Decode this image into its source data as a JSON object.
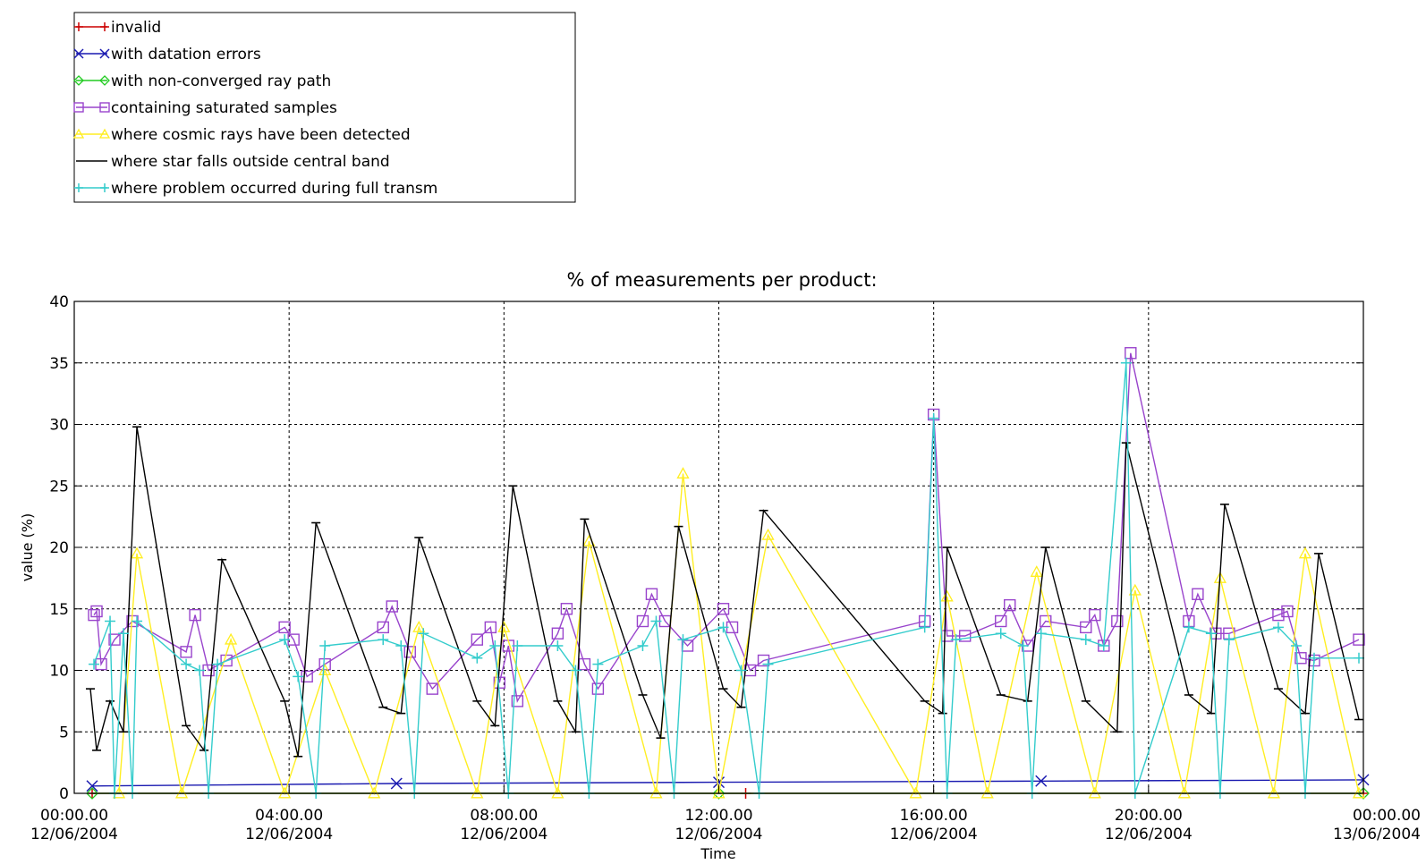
{
  "chart_data": {
    "type": "line",
    "title": "% of measurements per product:",
    "xlabel": "Time",
    "ylabel": "value (%)",
    "ylim": [
      0,
      40
    ],
    "xlim": [
      "2004-06-12 00:00",
      "2004-06-13 00:00"
    ],
    "yticks": [
      0,
      5,
      10,
      15,
      20,
      25,
      30,
      35,
      40
    ],
    "xticks": [
      {
        "value": "2004-06-12 00:00",
        "line1": "00:00.00",
        "line2": "12/06/2004"
      },
      {
        "value": "2004-06-12 04:00",
        "line1": "04:00.00",
        "line2": "12/06/2004"
      },
      {
        "value": "2004-06-12 08:00",
        "line1": "08:00.00",
        "line2": "12/06/2004"
      },
      {
        "value": "2004-06-12 12:00",
        "line1": "12:00.00",
        "line2": "12/06/2004"
      },
      {
        "value": "2004-06-12 16:00",
        "line1": "16:00.00",
        "line2": "12/06/2004"
      },
      {
        "value": "2004-06-12 20:00",
        "line1": "20:00.00",
        "line2": "12/06/2004"
      },
      {
        "value": "2004-06-13 00:00",
        "line1": "00:00.00",
        "line2": "13/06/2004"
      }
    ],
    "grid": true,
    "legend_position": "top-left, above plot",
    "series": [
      {
        "name": "invalid",
        "color": "#cc0000",
        "marker": "plus",
        "x": [
          "2004-06-12 00:20",
          "2004-06-12 12:30",
          "2004-06-13 00:00"
        ],
        "y": [
          0,
          0,
          0
        ]
      },
      {
        "name": "with datation errors",
        "color": "#1a1ab0",
        "marker": "x",
        "x": [
          "2004-06-12 00:20",
          "2004-06-12 06:00",
          "2004-06-12 12:00",
          "2004-06-12 18:00",
          "2004-06-13 00:00"
        ],
        "y": [
          0.6,
          0.8,
          0.9,
          1.0,
          1.1
        ]
      },
      {
        "name": "with non-converged ray path",
        "color": "#22cc22",
        "marker": "diamond",
        "x": [
          "2004-06-12 00:20",
          "2004-06-12 12:00",
          "2004-06-13 00:00"
        ],
        "y": [
          0,
          0,
          0
        ]
      },
      {
        "name": "containing saturated samples",
        "color": "#9944cc",
        "marker": "square",
        "x": [
          "2004-06-12 00:22",
          "2004-06-12 00:25",
          "2004-06-12 00:30",
          "2004-06-12 00:45",
          "2004-06-12 01:05",
          "2004-06-12 02:05",
          "2004-06-12 02:15",
          "2004-06-12 02:30",
          "2004-06-12 02:50",
          "2004-06-12 03:55",
          "2004-06-12 04:05",
          "2004-06-12 04:20",
          "2004-06-12 04:40",
          "2004-06-12 05:45",
          "2004-06-12 05:55",
          "2004-06-12 06:15",
          "2004-06-12 06:40",
          "2004-06-12 07:30",
          "2004-06-12 07:45",
          "2004-06-12 07:55",
          "2004-06-12 08:05",
          "2004-06-12 08:15",
          "2004-06-12 09:00",
          "2004-06-12 09:10",
          "2004-06-12 09:30",
          "2004-06-12 09:45",
          "2004-06-12 10:35",
          "2004-06-12 10:45",
          "2004-06-12 11:00",
          "2004-06-12 11:25",
          "2004-06-12 12:05",
          "2004-06-12 12:15",
          "2004-06-12 12:35",
          "2004-06-12 12:50",
          "2004-06-12 15:50",
          "2004-06-12 16:00",
          "2004-06-12 16:15",
          "2004-06-12 16:35",
          "2004-06-12 17:15",
          "2004-06-12 17:25",
          "2004-06-12 17:45",
          "2004-06-12 18:05",
          "2004-06-12 18:50",
          "2004-06-12 19:00",
          "2004-06-12 19:10",
          "2004-06-12 19:25",
          "2004-06-12 19:40",
          "2004-06-12 20:45",
          "2004-06-12 20:55",
          "2004-06-12 21:15",
          "2004-06-12 21:30",
          "2004-06-12 22:25",
          "2004-06-12 22:35",
          "2004-06-12 22:50",
          "2004-06-12 23:05",
          "2004-06-12 23:55"
        ],
        "y": [
          14.5,
          14.8,
          10.5,
          12.5,
          14.0,
          11.5,
          14.5,
          10.0,
          10.8,
          13.5,
          12.5,
          9.5,
          10.5,
          13.5,
          15.2,
          11.5,
          8.5,
          12.5,
          13.5,
          9.0,
          12.0,
          7.5,
          13.0,
          15.0,
          10.5,
          8.5,
          14.0,
          16.2,
          14.0,
          12.0,
          15.0,
          13.5,
          10.0,
          10.8,
          14.0,
          30.8,
          12.8,
          12.8,
          14.0,
          15.3,
          12.0,
          14.0,
          13.5,
          14.5,
          12.0,
          14.0,
          35.8,
          14.0,
          16.2,
          13.0,
          13.0,
          14.5,
          14.8,
          11.0,
          10.8,
          12.5
        ]
      },
      {
        "name": "where cosmic rays have been detected",
        "color": "#ffee22",
        "marker": "triangle",
        "x": [
          "2004-06-12 00:50",
          "2004-06-12 01:10",
          "2004-06-12 02:00",
          "2004-06-12 02:55",
          "2004-06-12 03:55",
          "2004-06-12 04:40",
          "2004-06-12 05:35",
          "2004-06-12 06:25",
          "2004-06-12 07:30",
          "2004-06-12 08:00",
          "2004-06-12 09:00",
          "2004-06-12 09:35",
          "2004-06-12 10:50",
          "2004-06-12 11:20",
          "2004-06-12 12:00",
          "2004-06-12 12:55",
          "2004-06-12 15:40",
          "2004-06-12 16:15",
          "2004-06-12 17:00",
          "2004-06-12 17:55",
          "2004-06-12 19:00",
          "2004-06-12 19:45",
          "2004-06-12 20:40",
          "2004-06-12 21:20",
          "2004-06-12 22:20",
          "2004-06-12 22:55",
          "2004-06-12 23:55"
        ],
        "y": [
          0,
          19.5,
          0,
          12.5,
          0,
          10.0,
          0,
          13.5,
          0,
          13.5,
          0,
          20.5,
          0,
          26.0,
          0,
          21.0,
          0,
          16.0,
          0,
          18.0,
          0,
          16.5,
          0,
          17.5,
          0,
          19.5,
          0
        ]
      },
      {
        "name": "where star falls outside central band",
        "color": "#000000",
        "marker": "bar",
        "x": [
          "2004-06-12 00:18",
          "2004-06-12 00:25",
          "2004-06-12 00:40",
          "2004-06-12 00:55",
          "2004-06-12 01:10",
          "2004-06-12 02:05",
          "2004-06-12 02:25",
          "2004-06-12 02:45",
          "2004-06-12 03:55",
          "2004-06-12 04:10",
          "2004-06-12 04:30",
          "2004-06-12 05:45",
          "2004-06-12 06:05",
          "2004-06-12 06:25",
          "2004-06-12 07:30",
          "2004-06-12 07:50",
          "2004-06-12 08:10",
          "2004-06-12 09:00",
          "2004-06-12 09:20",
          "2004-06-12 09:30",
          "2004-06-12 10:35",
          "2004-06-12 10:55",
          "2004-06-12 11:15",
          "2004-06-12 12:05",
          "2004-06-12 12:25",
          "2004-06-12 12:50",
          "2004-06-12 15:50",
          "2004-06-12 16:10",
          "2004-06-12 16:15",
          "2004-06-12 17:15",
          "2004-06-12 17:45",
          "2004-06-12 18:05",
          "2004-06-12 18:50",
          "2004-06-12 19:25",
          "2004-06-12 19:35",
          "2004-06-12 20:45",
          "2004-06-12 21:10",
          "2004-06-12 21:25",
          "2004-06-12 22:25",
          "2004-06-12 22:55",
          "2004-06-12 23:10",
          "2004-06-12 23:55"
        ],
        "y": [
          8.5,
          3.5,
          7.5,
          5.0,
          29.8,
          5.5,
          3.5,
          19.0,
          7.5,
          3.0,
          22.0,
          7.0,
          6.5,
          20.8,
          7.5,
          5.5,
          25.0,
          7.5,
          5.0,
          22.3,
          8.0,
          4.5,
          21.7,
          8.5,
          7.0,
          23.0,
          7.5,
          6.5,
          20.0,
          8.0,
          7.5,
          20.0,
          7.5,
          5.0,
          28.5,
          8.0,
          6.5,
          23.5,
          8.5,
          6.5,
          19.5,
          6.0
        ]
      },
      {
        "name": "where problem occurred during full transm",
        "color": "#33cccc",
        "marker": "plus",
        "x": [
          "2004-06-12 00:22",
          "2004-06-12 00:40",
          "2004-06-12 00:45",
          "2004-06-12 00:55",
          "2004-06-12 01:05",
          "2004-06-12 01:10",
          "2004-06-12 02:05",
          "2004-06-12 02:20",
          "2004-06-12 02:30",
          "2004-06-12 02:40",
          "2004-06-12 03:55",
          "2004-06-12 04:10",
          "2004-06-12 04:30",
          "2004-06-12 04:40",
          "2004-06-12 05:45",
          "2004-06-12 06:05",
          "2004-06-12 06:20",
          "2004-06-12 06:30",
          "2004-06-12 07:30",
          "2004-06-12 07:50",
          "2004-06-12 08:05",
          "2004-06-12 08:15",
          "2004-06-12 09:00",
          "2004-06-12 09:20",
          "2004-06-12 09:35",
          "2004-06-12 09:45",
          "2004-06-12 10:35",
          "2004-06-12 10:50",
          "2004-06-12 11:10",
          "2004-06-12 11:20",
          "2004-06-12 12:05",
          "2004-06-12 12:25",
          "2004-06-12 12:45",
          "2004-06-12 12:55",
          "2004-06-12 15:50",
          "2004-06-12 16:00",
          "2004-06-12 16:15",
          "2004-06-12 16:25",
          "2004-06-12 17:15",
          "2004-06-12 17:40",
          "2004-06-12 17:50",
          "2004-06-12 18:00",
          "2004-06-12 18:50",
          "2004-06-12 19:10",
          "2004-06-12 19:35",
          "2004-06-12 19:45",
          "2004-06-12 20:45",
          "2004-06-12 21:10",
          "2004-06-12 21:20",
          "2004-06-12 21:30",
          "2004-06-12 22:25",
          "2004-06-12 22:45",
          "2004-06-12 22:55",
          "2004-06-12 23:05",
          "2004-06-12 23:55"
        ],
        "y": [
          10.5,
          14.0,
          0,
          13.0,
          0,
          14.0,
          10.5,
          10.0,
          0,
          10.5,
          12.5,
          9.5,
          0,
          12.0,
          12.5,
          12.0,
          0,
          13.0,
          11.0,
          12.0,
          0,
          12.0,
          12.0,
          10.0,
          0,
          10.5,
          12.0,
          14.0,
          0,
          12.5,
          13.5,
          10.0,
          0,
          10.5,
          13.5,
          30.5,
          0,
          12.5,
          13.0,
          12.0,
          0,
          13.0,
          12.5,
          12.0,
          35.0,
          0,
          13.5,
          13.0,
          0,
          12.5,
          13.5,
          12.0,
          0,
          11.0,
          11.0
        ]
      }
    ]
  }
}
